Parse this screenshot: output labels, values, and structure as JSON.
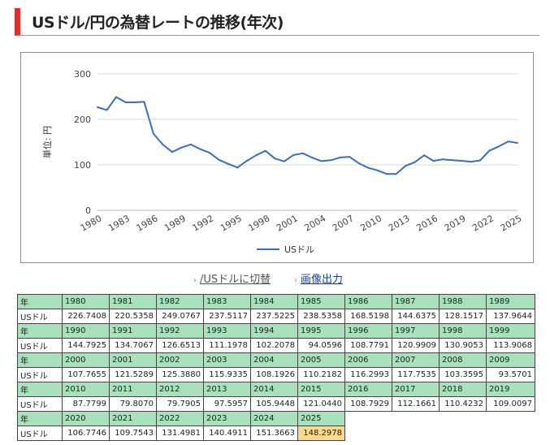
{
  "page": {
    "title": "USドル/円の為替レートの推移(年次)"
  },
  "links": {
    "switch": "/USドルに切替",
    "export": "画像出力"
  },
  "table": {
    "year_header": "年",
    "currency_header": "USドル"
  },
  "chart_data": {
    "type": "line",
    "title": "",
    "xlabel": "",
    "ylabel": "単位: 円",
    "ylim": [
      0,
      300
    ],
    "yticks": [
      0,
      100,
      200,
      300
    ],
    "xtick_labels": [
      "1980",
      "1983",
      "1986",
      "1989",
      "1992",
      "1995",
      "1998",
      "2001",
      "2004",
      "2007",
      "2010",
      "2013",
      "2016",
      "2019",
      "2022",
      "2025"
    ],
    "grid": true,
    "legend_position": "bottom",
    "series_color": "#3a6fbe",
    "x": [
      1980,
      1981,
      1982,
      1983,
      1984,
      1985,
      1986,
      1987,
      1988,
      1989,
      1990,
      1991,
      1992,
      1993,
      1994,
      1995,
      1996,
      1997,
      1998,
      1999,
      2000,
      2001,
      2002,
      2003,
      2004,
      2005,
      2006,
      2007,
      2008,
      2009,
      2010,
      2011,
      2012,
      2013,
      2014,
      2015,
      2016,
      2017,
      2018,
      2019,
      2020,
      2021,
      2022,
      2023,
      2024,
      2025
    ],
    "series": [
      {
        "name": "USドル",
        "values": [
          "226.7408",
          "220.5358",
          "249.0767",
          "237.5117",
          "237.5225",
          "238.5358",
          "168.5198",
          "144.6375",
          "128.1517",
          "137.9644",
          "144.7925",
          "134.7067",
          "126.6513",
          "111.1978",
          "102.2078",
          "94.0596",
          "108.7791",
          "120.9909",
          "130.9053",
          "113.9068",
          "107.7655",
          "121.5289",
          "125.3880",
          "115.9335",
          "108.1926",
          "110.2182",
          "116.2993",
          "117.7535",
          "103.3595",
          "93.5701",
          "87.7799",
          "79.8070",
          "79.7905",
          "97.5957",
          "105.9448",
          "121.0440",
          "108.7929",
          "112.1661",
          "110.4232",
          "109.0097",
          "106.7746",
          "109.7543",
          "131.4981",
          "140.4911",
          "151.3663",
          "148.2978"
        ]
      }
    ]
  }
}
